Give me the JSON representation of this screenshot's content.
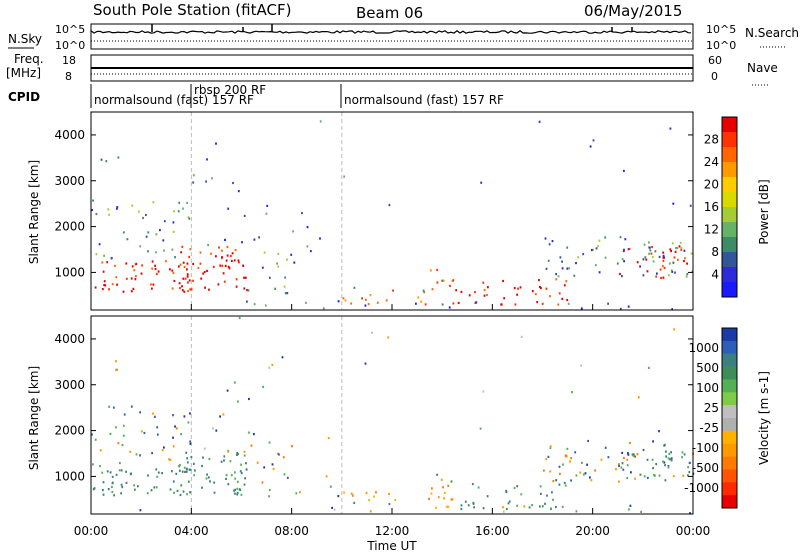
{
  "header": {
    "station": "South Pole Station (fitACF)",
    "beam": "Beam 06",
    "date": "06/May/2015"
  },
  "top_panel": {
    "left_label": "N.Sky",
    "right_label": "N.Search",
    "left_ticks": [
      "10^5",
      "10^0"
    ],
    "right_ticks": [
      "10^5",
      "10^0"
    ]
  },
  "freq_panel": {
    "left_label_line1": "Freq.",
    "left_label_line2": "[MHz]",
    "right_label": "Nave",
    "left_ticks": [
      "18",
      "8"
    ],
    "right_ticks": [
      "60",
      "0"
    ]
  },
  "cpid": {
    "label": "CPID",
    "segments": [
      {
        "text": "normalsound (fast) 157 RF",
        "start_hour": 0.0
      },
      {
        "text": "rbsp 200 RF",
        "start_hour": 4.0
      },
      {
        "text": "normalsound (fast) 157 RF",
        "start_hour": 10.0
      }
    ]
  },
  "chart_data": [
    {
      "type": "heatmap",
      "title": "Power",
      "ylabel": "Slant Range [km]",
      "xlabel": "Time UT",
      "x_ticks": [
        "00:00",
        "04:00",
        "08:00",
        "12:00",
        "16:00",
        "20:00",
        "00:00"
      ],
      "y_ticks": [
        1000,
        2000,
        3000,
        4000
      ],
      "ylim": [
        180,
        4500
      ],
      "xlim_hours": [
        0,
        24
      ],
      "colorbar_label": "Power [dB]",
      "colorbar_ticks": [
        "28",
        "24",
        "20",
        "16",
        "12",
        "8",
        "4"
      ],
      "colorbar_colors": [
        "#e60000",
        "#ff3300",
        "#ff6600",
        "#ff9900",
        "#ffcc00",
        "#d9d900",
        "#a6cc33",
        "#66b266",
        "#3d8c66",
        "#33559a",
        "#2b2bd9",
        "#1a1aff"
      ]
    },
    {
      "type": "heatmap",
      "title": "Velocity",
      "ylabel": "Slant Range [km]",
      "xlabel": "Time UT",
      "x_ticks": [
        "00:00",
        "04:00",
        "08:00",
        "12:00",
        "16:00",
        "20:00",
        "00:00"
      ],
      "y_ticks": [
        1000,
        2000,
        3000,
        4000
      ],
      "ylim": [
        180,
        4500
      ],
      "xlim_hours": [
        0,
        24
      ],
      "colorbar_label": "Velocity [m s-1]",
      "colorbar_ticks": [
        "1000",
        "500",
        "100",
        "25",
        "-25",
        "-100",
        "-500",
        "-1000"
      ],
      "colorbar_colors": [
        "#1a3aa6",
        "#2e5fb8",
        "#3d7f7f",
        "#3d8c5a",
        "#55b055",
        "#7ecb4a",
        "#bfbfbf",
        "#b0b0b0",
        "#ffb300",
        "#ff9900",
        "#ff7a00",
        "#ff5500",
        "#ff2a00",
        "#e60000"
      ]
    }
  ]
}
